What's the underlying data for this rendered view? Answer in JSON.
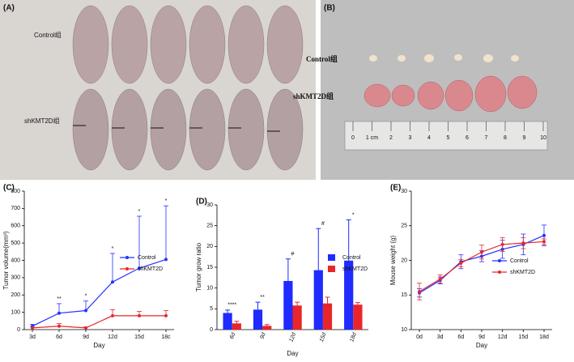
{
  "photos": [
    {
      "label": "(A)",
      "texts": [
        "Control组",
        "shKMT2D组"
      ]
    },
    {
      "label": "(B)",
      "texts": [
        "Control组",
        "shKMT2D组"
      ],
      "ruler": [
        "0",
        "1 cm",
        "2",
        "3",
        "4",
        "5",
        "6",
        "7",
        "8",
        "9",
        "10"
      ]
    }
  ],
  "chart_data": [
    {
      "type": "line",
      "label": "(C)",
      "x_label": "Day",
      "y_label": "Tumor volume(mm³)",
      "categories": [
        "3d",
        "6d",
        "9d",
        "12d",
        "15d",
        "18c"
      ],
      "series": [
        {
          "name": "Control",
          "color": "#2233ff",
          "values": [
            20,
            95,
            110,
            275,
            355,
            405
          ],
          "errors": [
            10,
            55,
            55,
            165,
            300,
            310
          ]
        },
        {
          "name": "shKMT2D",
          "color": "#e8262a",
          "values": [
            10,
            20,
            10,
            80,
            80,
            80
          ],
          "errors": [
            5,
            15,
            5,
            35,
            25,
            30
          ]
        }
      ],
      "significance": [
        null,
        "**",
        "*",
        "*",
        "*",
        "*"
      ],
      "error_bars": "upper",
      "ylim": [
        0,
        800
      ],
      "yticks": [
        0,
        100,
        200,
        300,
        400,
        500,
        600,
        700,
        800
      ]
    },
    {
      "type": "bar",
      "label": "(D)",
      "x_label": "Day",
      "y_label": "Tumor grow ratio",
      "categories": [
        "6d",
        "9d",
        "12d",
        "15d",
        "18d"
      ],
      "series": [
        {
          "name": "Control",
          "color": "#1f2bff",
          "values": [
            4,
            4.8,
            11.7,
            14.3,
            16.6
          ],
          "errors": [
            0.7,
            1.8,
            5.3,
            10,
            9.8
          ]
        },
        {
          "name": "shKMT2D",
          "color": "#e8262a",
          "values": [
            1.5,
            0.9,
            5.8,
            6.3,
            6.0
          ],
          "errors": [
            0.5,
            0.3,
            0.8,
            1.5,
            0.5
          ]
        }
      ],
      "significance": [
        "****",
        "**",
        "#",
        "#",
        "*"
      ],
      "error_bars": "upper",
      "ylim": [
        0,
        30
      ],
      "yticks": [
        0,
        5,
        10,
        15,
        20,
        25,
        30
      ]
    },
    {
      "type": "line",
      "label": "(E)",
      "x_label": "Day",
      "y_label": "Mouse weight (g)",
      "categories": [
        "0d",
        "3d",
        "6d",
        "9d",
        "12d",
        "15d",
        "18d"
      ],
      "series": [
        {
          "name": "Control",
          "color": "#2233ff",
          "values": [
            15.3,
            17.1,
            19.8,
            20.6,
            21.6,
            22.3,
            23.6
          ],
          "errors": [
            0.6,
            0.5,
            1,
            0.8,
            1.3,
            1.5,
            1.5
          ]
        },
        {
          "name": "shKMT2D",
          "color": "#e8262a",
          "values": [
            15.5,
            17.3,
            19.6,
            21.2,
            22.3,
            22.5,
            22.7
          ],
          "errors": [
            1.2,
            0.6,
            0.5,
            1,
            1,
            0.8,
            0.4
          ]
        }
      ],
      "error_bars": "both",
      "ylim": [
        10,
        30
      ],
      "yticks": [
        10,
        15,
        20,
        25,
        30
      ]
    }
  ]
}
